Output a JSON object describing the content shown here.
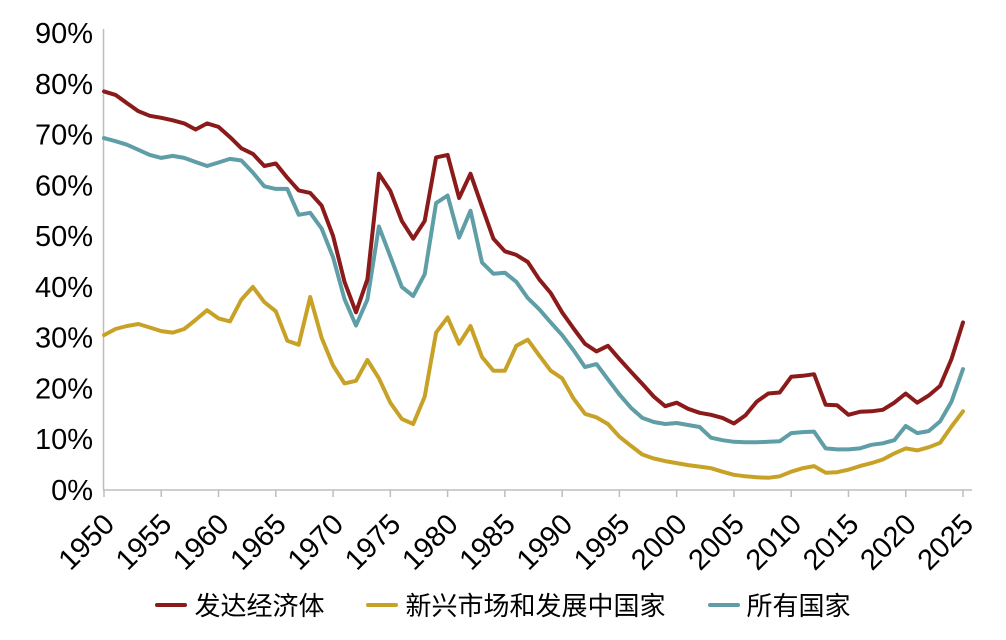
{
  "page": {
    "background": "#ffffff"
  },
  "chart_data": {
    "type": "line",
    "title": "",
    "xlabel": "",
    "ylabel": "",
    "ylim": [
      0,
      90
    ],
    "grid": false,
    "legend_position": "bottom",
    "axis_color": "#bdbdbd",
    "text_color": "#000000",
    "line_width": 4,
    "year_start": 1950,
    "year_end": 2025,
    "years": [
      1950,
      1951,
      1952,
      1953,
      1954,
      1955,
      1956,
      1957,
      1958,
      1959,
      1960,
      1961,
      1962,
      1963,
      1964,
      1965,
      1966,
      1967,
      1968,
      1969,
      1970,
      1971,
      1972,
      1973,
      1974,
      1975,
      1976,
      1977,
      1978,
      1979,
      1980,
      1981,
      1982,
      1983,
      1984,
      1985,
      1986,
      1987,
      1988,
      1989,
      1990,
      1991,
      1992,
      1993,
      1994,
      1995,
      1996,
      1997,
      1998,
      1999,
      2000,
      2001,
      2002,
      2003,
      2004,
      2005,
      2006,
      2007,
      2008,
      2009,
      2010,
      2011,
      2012,
      2013,
      2014,
      2015,
      2016,
      2017,
      2018,
      2019,
      2020,
      2021,
      2022,
      2023,
      2024,
      2025
    ],
    "y_ticks": [
      "0%",
      "10%",
      "20%",
      "30%",
      "40%",
      "50%",
      "60%",
      "70%",
      "80%",
      "90%"
    ],
    "x_ticks": [
      1950,
      1955,
      1960,
      1965,
      1970,
      1975,
      1980,
      1985,
      1990,
      1995,
      2000,
      2005,
      2010,
      2015,
      2020,
      2025
    ],
    "series": [
      {
        "name": "发达经济体",
        "color": "#8B1A1A",
        "values": [
          78.5,
          77.8,
          76.2,
          74.6,
          73.7,
          73.3,
          72.8,
          72.2,
          71.0,
          72.2,
          71.5,
          69.5,
          67.3,
          66.2,
          63.8,
          64.3,
          61.5,
          59.0,
          58.5,
          56.0,
          50.0,
          41.0,
          35.0,
          41.5,
          62.3,
          58.9,
          53.0,
          49.5,
          53.0,
          65.5,
          66.0,
          57.5,
          62.3,
          55.8,
          49.5,
          47.0,
          46.3,
          44.9,
          41.5,
          38.8,
          35.0,
          31.8,
          28.8,
          27.3,
          28.4,
          25.8,
          23.3,
          20.9,
          18.4,
          16.5,
          17.2,
          16.0,
          15.2,
          14.8,
          14.2,
          13.1,
          14.7,
          17.4,
          19.0,
          19.2,
          22.3,
          22.5,
          22.8,
          16.8,
          16.7,
          14.8,
          15.4,
          15.5,
          15.8,
          17.2,
          19.0,
          17.2,
          18.6,
          20.5,
          25.8,
          33.0
        ]
      },
      {
        "name": "新兴市场和发展中国家",
        "color": "#C8A227",
        "values": [
          30.5,
          31.7,
          32.3,
          32.7,
          32.0,
          31.3,
          31.0,
          31.7,
          33.5,
          35.4,
          33.8,
          33.2,
          37.5,
          40.0,
          37.0,
          35.2,
          29.4,
          28.6,
          38.0,
          30.0,
          24.5,
          21.0,
          21.5,
          25.6,
          22.0,
          17.2,
          14.0,
          13.0,
          18.4,
          31.0,
          34.0,
          28.8,
          32.3,
          26.2,
          23.5,
          23.5,
          28.4,
          29.6,
          26.5,
          23.5,
          22.0,
          18.0,
          15.0,
          14.3,
          13.0,
          10.5,
          8.7,
          7.0,
          6.2,
          5.7,
          5.3,
          4.9,
          4.6,
          4.3,
          3.6,
          3.0,
          2.7,
          2.5,
          2.4,
          2.7,
          3.6,
          4.3,
          4.7,
          3.4,
          3.5,
          4.0,
          4.7,
          5.3,
          6.0,
          7.2,
          8.2,
          7.8,
          8.4,
          9.3,
          12.5,
          15.5
        ]
      },
      {
        "name": "所有国家",
        "color": "#5F9EA6",
        "values": [
          69.3,
          68.7,
          68.0,
          67.0,
          66.0,
          65.4,
          65.8,
          65.4,
          64.6,
          63.8,
          64.5,
          65.2,
          64.9,
          62.5,
          59.8,
          59.3,
          59.3,
          54.2,
          54.6,
          51.5,
          45.8,
          37.6,
          32.4,
          37.5,
          51.9,
          46.0,
          40.0,
          38.2,
          42.5,
          56.5,
          58.0,
          49.7,
          55.0,
          44.8,
          42.6,
          42.8,
          41.0,
          37.8,
          35.6,
          33.0,
          30.5,
          27.5,
          24.2,
          24.8,
          21.8,
          18.8,
          16.2,
          14.2,
          13.4,
          13.0,
          13.2,
          12.8,
          12.4,
          10.3,
          9.8,
          9.5,
          9.4,
          9.4,
          9.5,
          9.6,
          11.2,
          11.4,
          11.5,
          8.2,
          8.0,
          8.0,
          8.2,
          8.9,
          9.2,
          9.8,
          12.6,
          11.2,
          11.6,
          13.5,
          17.4,
          23.8
        ]
      }
    ]
  }
}
